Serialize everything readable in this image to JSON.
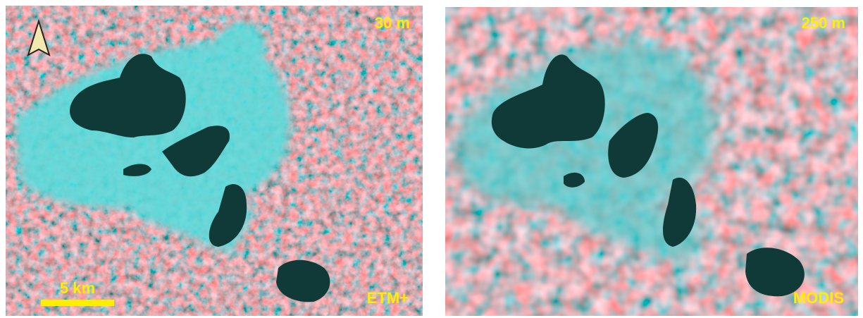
{
  "panels": [
    {
      "resolution": "30 m",
      "sensor": "ETM+",
      "scale_bar": "5 km"
    },
    {
      "resolution": "250 m",
      "sensor": "MODIS"
    }
  ]
}
